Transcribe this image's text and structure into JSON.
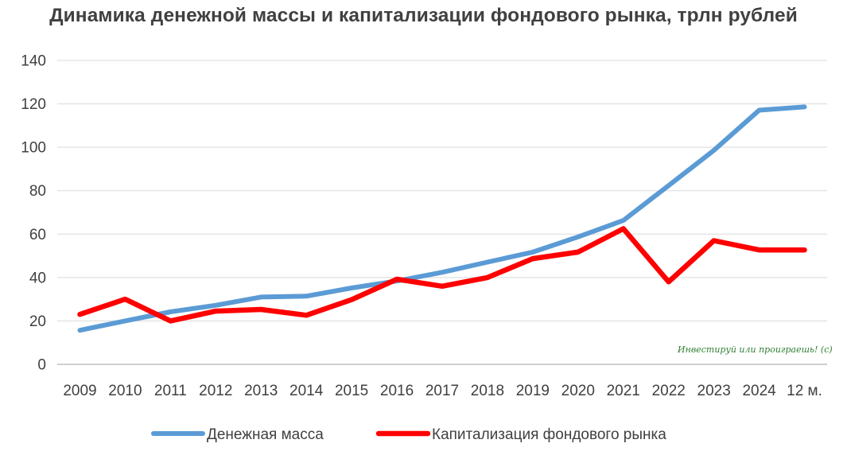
{
  "chart_data": {
    "type": "line",
    "title": "Динамика денежной массы и капитализации фондового рынка, трлн рублей",
    "categories": [
      "2009",
      "2010",
      "2011",
      "2012",
      "2013",
      "2014",
      "2015",
      "2016",
      "2017",
      "2018",
      "2019",
      "2020",
      "2021",
      "2022",
      "2023",
      "2024",
      "12 м."
    ],
    "ylim": [
      0,
      140
    ],
    "yticks": [
      0,
      20,
      40,
      60,
      80,
      100,
      120,
      140
    ],
    "grid": true,
    "legend_position": "bottom",
    "series": [
      {
        "name": "Денежная масса",
        "color": "#5b9bd5",
        "values": [
          15.7,
          20.0,
          24.2,
          27.2,
          31.0,
          31.4,
          35.2,
          38.4,
          42.4,
          47.1,
          51.7,
          58.7,
          66.3,
          82.4,
          98.6,
          117.1,
          118.6
        ]
      },
      {
        "name": "Капитализация фондового рынка",
        "color": "#ff0000",
        "values": [
          23.0,
          30.0,
          20.0,
          24.5,
          25.3,
          22.6,
          29.8,
          39.2,
          36.0,
          40.0,
          48.7,
          51.7,
          62.5,
          38.0,
          57.0,
          52.7,
          52.7
        ]
      }
    ],
    "watermark": "Инвестируй или проиграешь! (с)"
  }
}
